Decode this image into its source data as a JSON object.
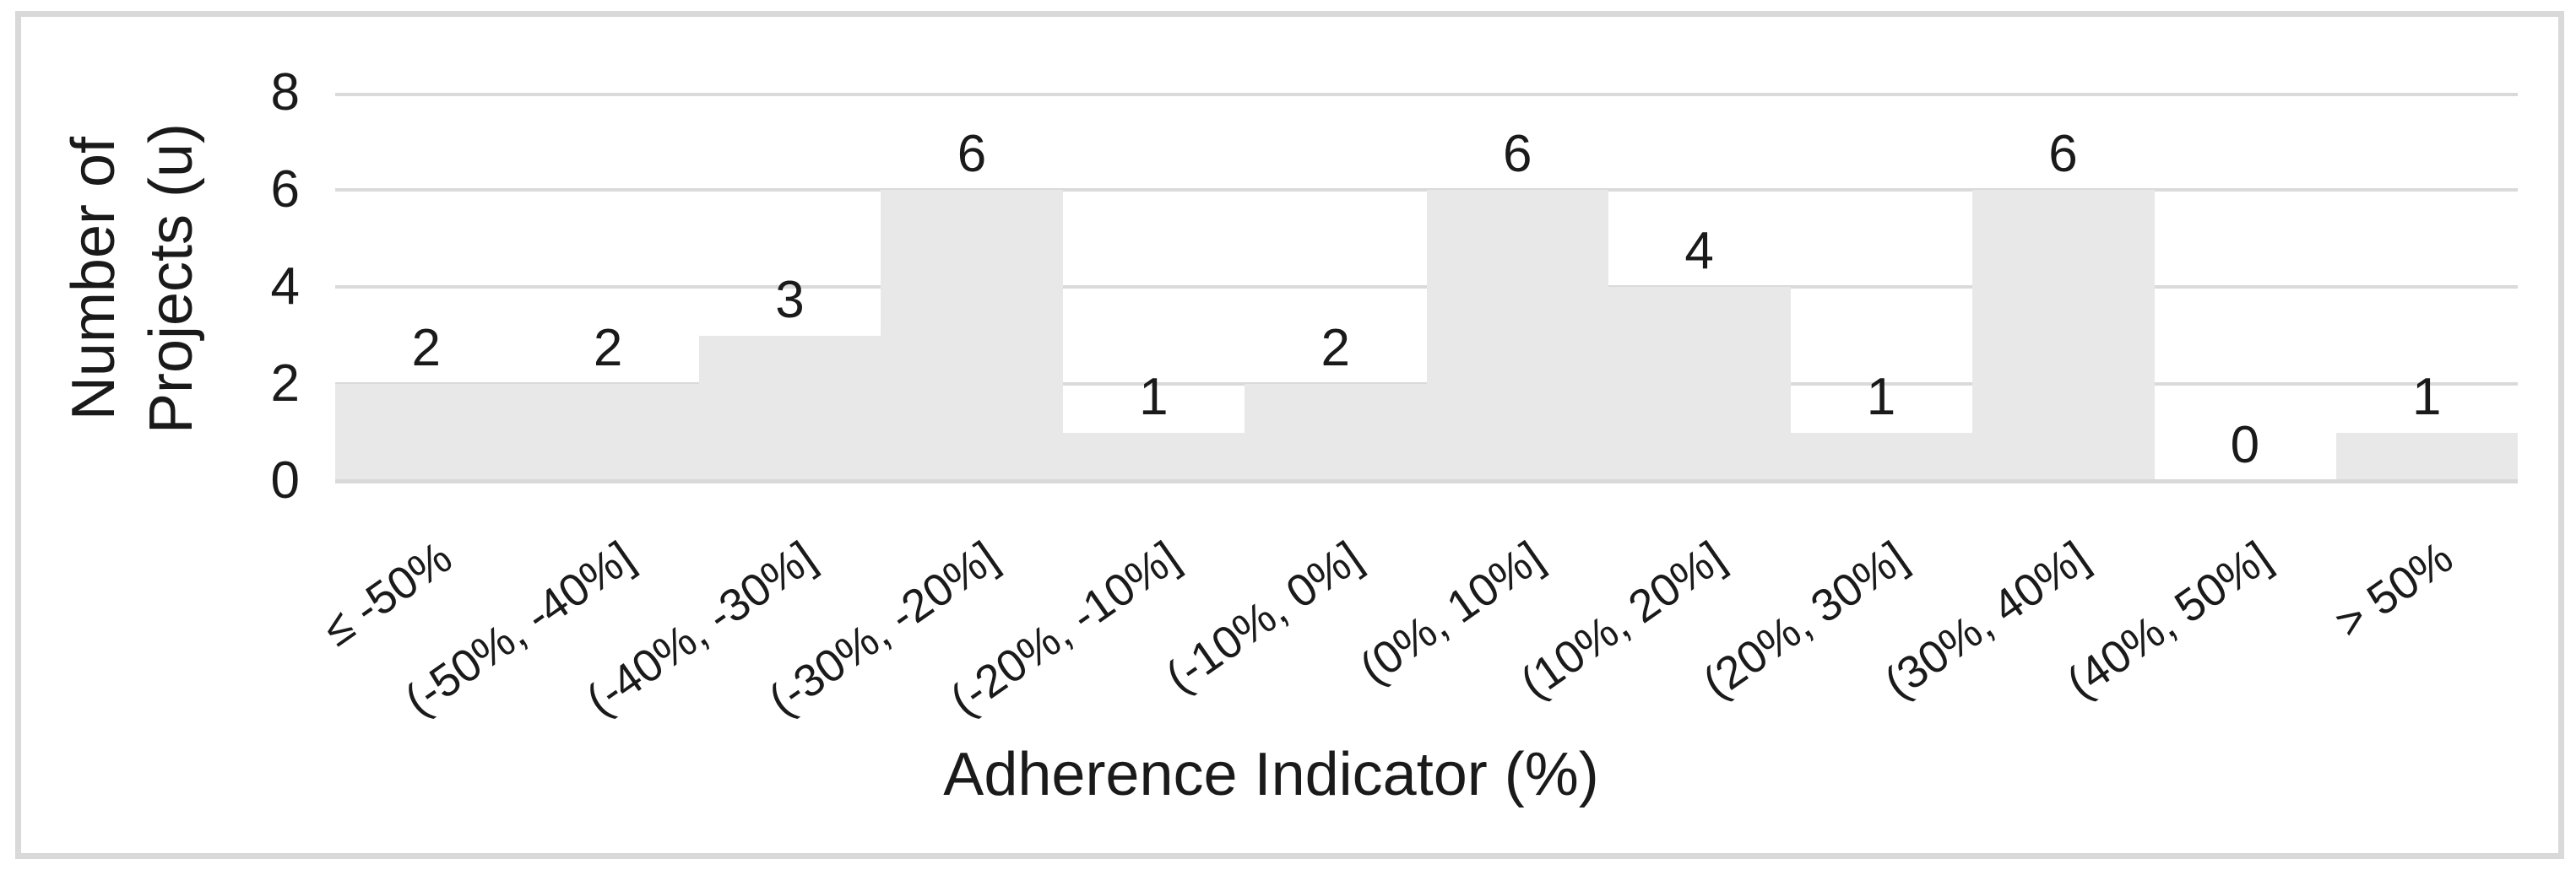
{
  "chart_data": {
    "type": "bar",
    "title": "",
    "categories": [
      "≤ -50%",
      "(-50%, -40%]",
      "(-40%, -30%]",
      "(-30%, -20%]",
      "(-20%, -10%]",
      "(-10%, 0%]",
      "(0%, 10%]",
      "(10%, 20%]",
      "(20%, 30%]",
      "(30%, 40%]",
      "(40%, 50%]",
      "> 50%"
    ],
    "values": [
      2,
      2,
      3,
      6,
      1,
      2,
      6,
      4,
      1,
      6,
      0,
      1
    ],
    "data_labels": [
      "2",
      "2",
      "3",
      "6",
      "1",
      "2",
      "6",
      "4",
      "1",
      "6",
      "0",
      "1"
    ],
    "xlabel": "Adherence Indicator (%)",
    "ylabel": "Number of Projects (u)",
    "ylabel_lines": [
      "Number of",
      "Projects (u)"
    ],
    "yticks": [
      0,
      2,
      4,
      6,
      8
    ],
    "ylim": [
      0,
      8
    ],
    "grid": true,
    "legend": false,
    "bar_gap": 0,
    "category_label_rotation_deg": -35,
    "bar_color": "#e8e8e8",
    "gridline_color": "#dadada",
    "axis_line_color": "#d9d9d9",
    "frame_border_color": "#d9d9d9",
    "text_color": "#1a1a1a"
  }
}
